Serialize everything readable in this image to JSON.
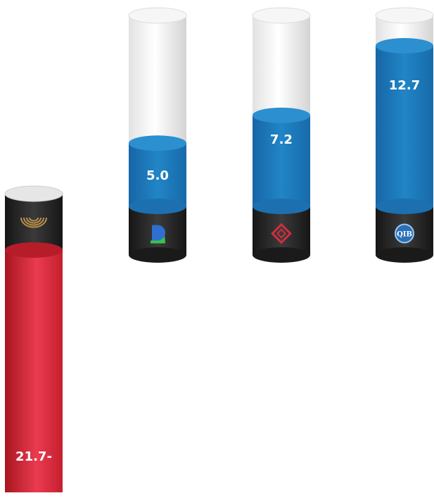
{
  "chart_data": {
    "type": "bar",
    "categories": [
      "logo-1",
      "logo-2",
      "logo-3",
      "logo-4"
    ],
    "values": [
      -21.7,
      5.0,
      7.2,
      12.7
    ],
    "display_labels": [
      "21.7-",
      "5.0",
      "7.2",
      "12.7"
    ],
    "icons": [
      "gold-arc-logo-icon",
      "blue-green-d-logo-icon",
      "red-diamond-logo-icon",
      "qib-logo-icon"
    ],
    "icon_texts": [
      "",
      "",
      "",
      "QIB"
    ],
    "colors": {
      "positive": "#1f7fc0",
      "negative": "#d42a3c",
      "cap": "#242424",
      "empty": "#eeeeee"
    }
  }
}
